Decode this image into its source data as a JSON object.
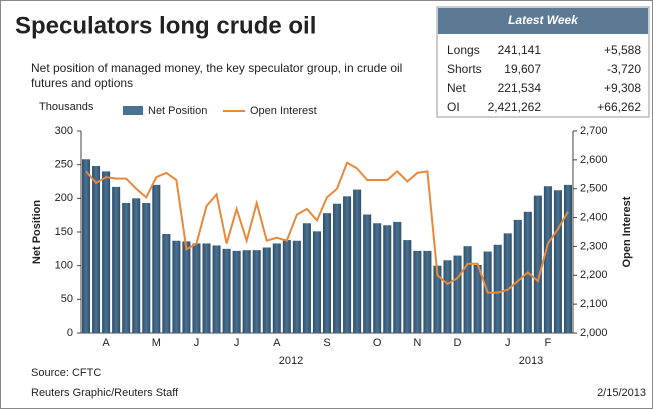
{
  "chart_data": {
    "type": "bar_line",
    "title": "Speculators long crude oil",
    "subtitle": "Net position of managed money, the key speculator group, in crude oil futures and options",
    "unit_label": "Thousands",
    "y_label": "Net Position",
    "y2_label": "Open Interest",
    "categories": [
      null,
      null,
      "A",
      null,
      null,
      null,
      null,
      "M",
      null,
      null,
      null,
      "J",
      null,
      null,
      null,
      "J",
      null,
      null,
      null,
      "A",
      null,
      null,
      null,
      null,
      "S",
      null,
      null,
      null,
      null,
      "O",
      null,
      null,
      null,
      "N",
      null,
      null,
      null,
      "D",
      null,
      null,
      null,
      null,
      "J",
      null,
      null,
      null,
      "F",
      null,
      null
    ],
    "years": [
      "2012",
      "2013"
    ],
    "series": [
      {
        "name": "Net Position",
        "color": "#4a7292",
        "values": [
          258,
          248,
          240,
          217,
          193,
          200,
          193,
          220,
          147,
          137,
          136,
          133,
          133,
          130,
          125,
          122,
          123,
          123,
          127,
          133,
          138,
          137,
          163,
          151,
          178,
          192,
          203,
          213,
          176,
          163,
          160,
          165,
          138,
          122,
          122,
          100,
          108,
          115,
          129,
          101,
          121,
          131,
          148,
          168,
          180,
          204,
          218,
          212,
          220
        ]
      },
      {
        "name": "Open Interest",
        "color": "#e8893a",
        "axis": "y2",
        "values": [
          2560,
          2520,
          2540,
          2535,
          2535,
          2500,
          2470,
          2540,
          2555,
          2530,
          2290,
          2310,
          2440,
          2480,
          2310,
          2430,
          2320,
          2450,
          2320,
          2330,
          2320,
          2410,
          2430,
          2390,
          2470,
          2500,
          2590,
          2570,
          2530,
          2530,
          2530,
          2560,
          2525,
          2555,
          2560,
          2200,
          2170,
          2190,
          2240,
          2240,
          2140,
          2140,
          2150,
          2180,
          2210,
          2180,
          2310,
          2360,
          2420
        ]
      }
    ],
    "ylim": [
      0,
      300
    ],
    "yticks": [
      0,
      50,
      100,
      150,
      200,
      250,
      300
    ],
    "y2lim": [
      2000,
      2700
    ],
    "y2ticks": [
      {
        "value": 2000,
        "label": "2,000"
      },
      {
        "value": 2100,
        "label": "2,100"
      },
      {
        "value": 2200,
        "label": "2,200"
      },
      {
        "value": 2300,
        "label": "2,300"
      },
      {
        "value": 2400,
        "label": "2,400"
      },
      {
        "value": 2500,
        "label": "2,500"
      },
      {
        "value": 2600,
        "label": "2,600"
      },
      {
        "value": 2700,
        "label": "2,700"
      }
    ],
    "source": "Source: CFTC",
    "credit": "Reuters Graphic/Reuters Staff",
    "date": "2/15/2013"
  },
  "latest_week": {
    "title": "Latest Week",
    "rows": [
      [
        "Longs",
        "241,141",
        "+5,588"
      ],
      [
        "Shorts",
        "19,607",
        "-3,720"
      ],
      [
        "Net",
        "221,534",
        "+9,308"
      ],
      [
        "OI",
        "2,421,262",
        "+66,262"
      ]
    ]
  }
}
